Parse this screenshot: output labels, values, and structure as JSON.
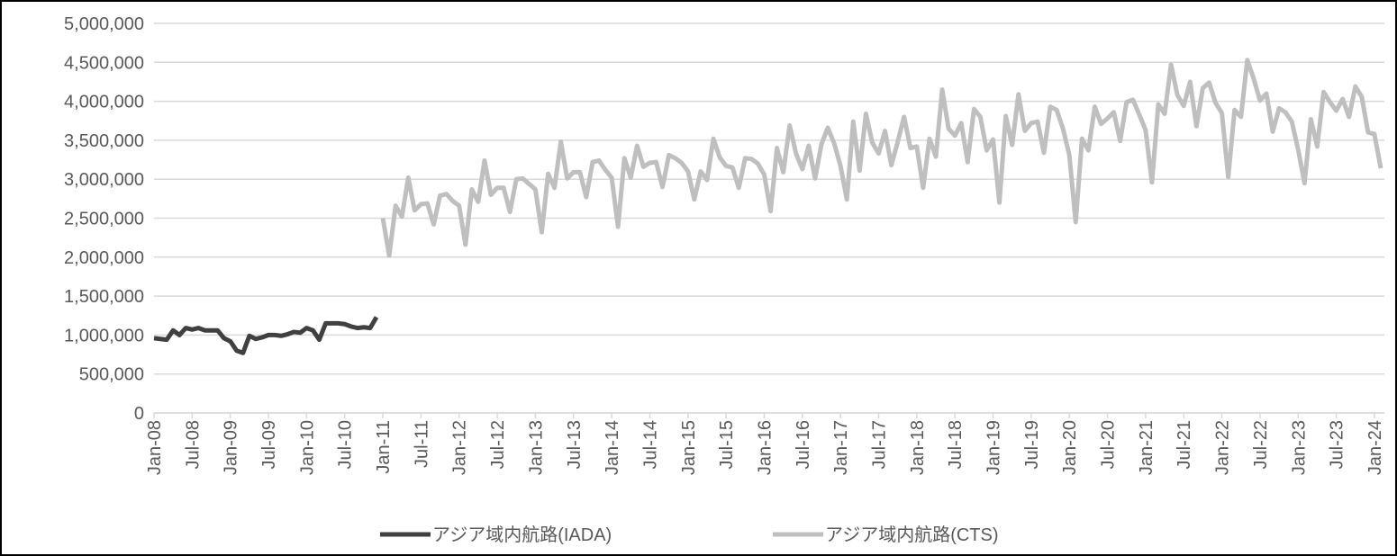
{
  "chart_data": {
    "type": "line",
    "categories": [
      "Jan-08",
      null,
      null,
      null,
      null,
      null,
      "Jul-08",
      null,
      null,
      null,
      null,
      null,
      "Jan-09",
      null,
      null,
      null,
      null,
      null,
      "Jul-09",
      null,
      null,
      null,
      null,
      null,
      "Jan-10",
      null,
      null,
      null,
      null,
      null,
      "Jul-10",
      null,
      null,
      null,
      null,
      null,
      "Jan-11",
      null,
      null,
      null,
      null,
      null,
      "Jul-11",
      null,
      null,
      null,
      null,
      null,
      "Jan-12",
      null,
      null,
      null,
      null,
      null,
      "Jul-12",
      null,
      null,
      null,
      null,
      null,
      "Jan-13",
      null,
      null,
      null,
      null,
      null,
      "Jul-13",
      null,
      null,
      null,
      null,
      null,
      "Jan-14",
      null,
      null,
      null,
      null,
      null,
      "Jul-14",
      null,
      null,
      null,
      null,
      null,
      "Jan-15",
      null,
      null,
      null,
      null,
      null,
      "Jul-15",
      null,
      null,
      null,
      null,
      null,
      "Jan-16",
      null,
      null,
      null,
      null,
      null,
      "Jul-16",
      null,
      null,
      null,
      null,
      null,
      "Jan-17",
      null,
      null,
      null,
      null,
      null,
      "Jul-17",
      null,
      null,
      null,
      null,
      null,
      "Jan-18",
      null,
      null,
      null,
      null,
      null,
      "Jul-18",
      null,
      null,
      null,
      null,
      null,
      "Jan-19",
      null,
      null,
      null,
      null,
      null,
      "Jul-19",
      null,
      null,
      null,
      null,
      null,
      "Jan-20",
      null,
      null,
      null,
      null,
      null,
      "Jul-20",
      null,
      null,
      null,
      null,
      null,
      "Jan-21",
      null,
      null,
      null,
      null,
      null,
      "Jul-21",
      null,
      null,
      null,
      null,
      null,
      "Jan-22",
      null,
      null,
      null,
      null,
      null,
      "Jul-22",
      null,
      null,
      null,
      null,
      null,
      "Jan-23",
      null,
      null,
      null,
      null,
      null,
      "Jul-23",
      null,
      null,
      null,
      null,
      null,
      "Jan-24",
      null
    ],
    "series": [
      {
        "name": "アジア域内航路(IADA)",
        "color": "#404040",
        "values": [
          960000,
          950000,
          940000,
          1060000,
          1000000,
          1090000,
          1070000,
          1090000,
          1060000,
          1060000,
          1060000,
          960000,
          920000,
          800000,
          770000,
          990000,
          950000,
          970000,
          1000000,
          1000000,
          990000,
          1010000,
          1040000,
          1030000,
          1090000,
          1060000,
          940000,
          1150000,
          1150000,
          1150000,
          1140000,
          1110000,
          1090000,
          1100000,
          1090000,
          1230000,
          null,
          null,
          null,
          null,
          null,
          null,
          null,
          null,
          null,
          null,
          null,
          null,
          null,
          null,
          null,
          null,
          null,
          null,
          null,
          null,
          null,
          null,
          null,
          null,
          null,
          null,
          null,
          null,
          null,
          null,
          null,
          null,
          null,
          null,
          null,
          null,
          null,
          null,
          null,
          null,
          null,
          null,
          null,
          null,
          null,
          null,
          null,
          null,
          null,
          null,
          null,
          null,
          null,
          null,
          null,
          null,
          null,
          null,
          null,
          null,
          null,
          null,
          null,
          null,
          null,
          null,
          null,
          null,
          null,
          null,
          null,
          null,
          null,
          null,
          null,
          null,
          null,
          null,
          null,
          null,
          null,
          null,
          null,
          null,
          null,
          null,
          null,
          null,
          null,
          null,
          null,
          null,
          null,
          null,
          null,
          null,
          null,
          null,
          null,
          null,
          null,
          null,
          null,
          null,
          null,
          null,
          null,
          null,
          null,
          null,
          null,
          null,
          null,
          null,
          null,
          null,
          null,
          null,
          null,
          null,
          null,
          null,
          null,
          null,
          null,
          null,
          null,
          null,
          null,
          null,
          null,
          null,
          null,
          null,
          null,
          null,
          null,
          null,
          null,
          null,
          null,
          null,
          null,
          null,
          null,
          null,
          null,
          null,
          null,
          null,
          null,
          null,
          null,
          null,
          null,
          null,
          null,
          null
        ]
      },
      {
        "name": "アジア域内航路(CTS)",
        "color": "#bfbfbf",
        "values": [
          null,
          null,
          null,
          null,
          null,
          null,
          null,
          null,
          null,
          null,
          null,
          null,
          null,
          null,
          null,
          null,
          null,
          null,
          null,
          null,
          null,
          null,
          null,
          null,
          null,
          null,
          null,
          null,
          null,
          null,
          null,
          null,
          null,
          null,
          null,
          null,
          2500000,
          2020000,
          2660000,
          2520000,
          3020000,
          2600000,
          2680000,
          2690000,
          2420000,
          2790000,
          2810000,
          2720000,
          2660000,
          2160000,
          2870000,
          2710000,
          3240000,
          2800000,
          2890000,
          2890000,
          2580000,
          3000000,
          3010000,
          2940000,
          2870000,
          2320000,
          3070000,
          2890000,
          3480000,
          3010000,
          3090000,
          3090000,
          2770000,
          3220000,
          3240000,
          3120000,
          3020000,
          2390000,
          3270000,
          3020000,
          3430000,
          3160000,
          3210000,
          3220000,
          2900000,
          3310000,
          3270000,
          3210000,
          3100000,
          2740000,
          3100000,
          2990000,
          3520000,
          3280000,
          3170000,
          3150000,
          2890000,
          3270000,
          3260000,
          3200000,
          3060000,
          2590000,
          3400000,
          3090000,
          3690000,
          3330000,
          3130000,
          3430000,
          3010000,
          3450000,
          3660000,
          3460000,
          3170000,
          2740000,
          3740000,
          3110000,
          3840000,
          3470000,
          3330000,
          3620000,
          3180000,
          3480000,
          3800000,
          3400000,
          3420000,
          2890000,
          3520000,
          3290000,
          4150000,
          3650000,
          3560000,
          3720000,
          3220000,
          3900000,
          3800000,
          3370000,
          3510000,
          2700000,
          3810000,
          3440000,
          4090000,
          3620000,
          3720000,
          3740000,
          3340000,
          3930000,
          3890000,
          3650000,
          3310000,
          2450000,
          3520000,
          3370000,
          3930000,
          3710000,
          3780000,
          3860000,
          3490000,
          3990000,
          4020000,
          3830000,
          3630000,
          2960000,
          3960000,
          3840000,
          4470000,
          4080000,
          3940000,
          4250000,
          3680000,
          4170000,
          4240000,
          3980000,
          3850000,
          3030000,
          3890000,
          3800000,
          4530000,
          4290000,
          4010000,
          4100000,
          3610000,
          3910000,
          3860000,
          3740000,
          3380000,
          2950000,
          3770000,
          3420000,
          4120000,
          3990000,
          3880000,
          4030000,
          3800000,
          4190000,
          4060000,
          3600000,
          3580000,
          3140000
        ]
      }
    ],
    "ylim": [
      0,
      5000000
    ],
    "yticks": [
      0,
      {
        "value": 500000,
        "label": "500,000"
      },
      {
        "value": 1000000,
        "label": "1,000,000"
      },
      {
        "value": 1500000,
        "label": "1,500,000"
      },
      {
        "value": 2000000,
        "label": "2,000,000"
      },
      {
        "value": 2500000,
        "label": "2,500,000"
      },
      {
        "value": 3000000,
        "label": "3,000,000"
      },
      {
        "value": 3500000,
        "label": "3,500,000"
      },
      {
        "value": 4000000,
        "label": "4,000,000"
      },
      {
        "value": 4500000,
        "label": "4,500,000"
      },
      {
        "value": 5000000,
        "label": "5,000,000"
      }
    ],
    "grid": true
  }
}
